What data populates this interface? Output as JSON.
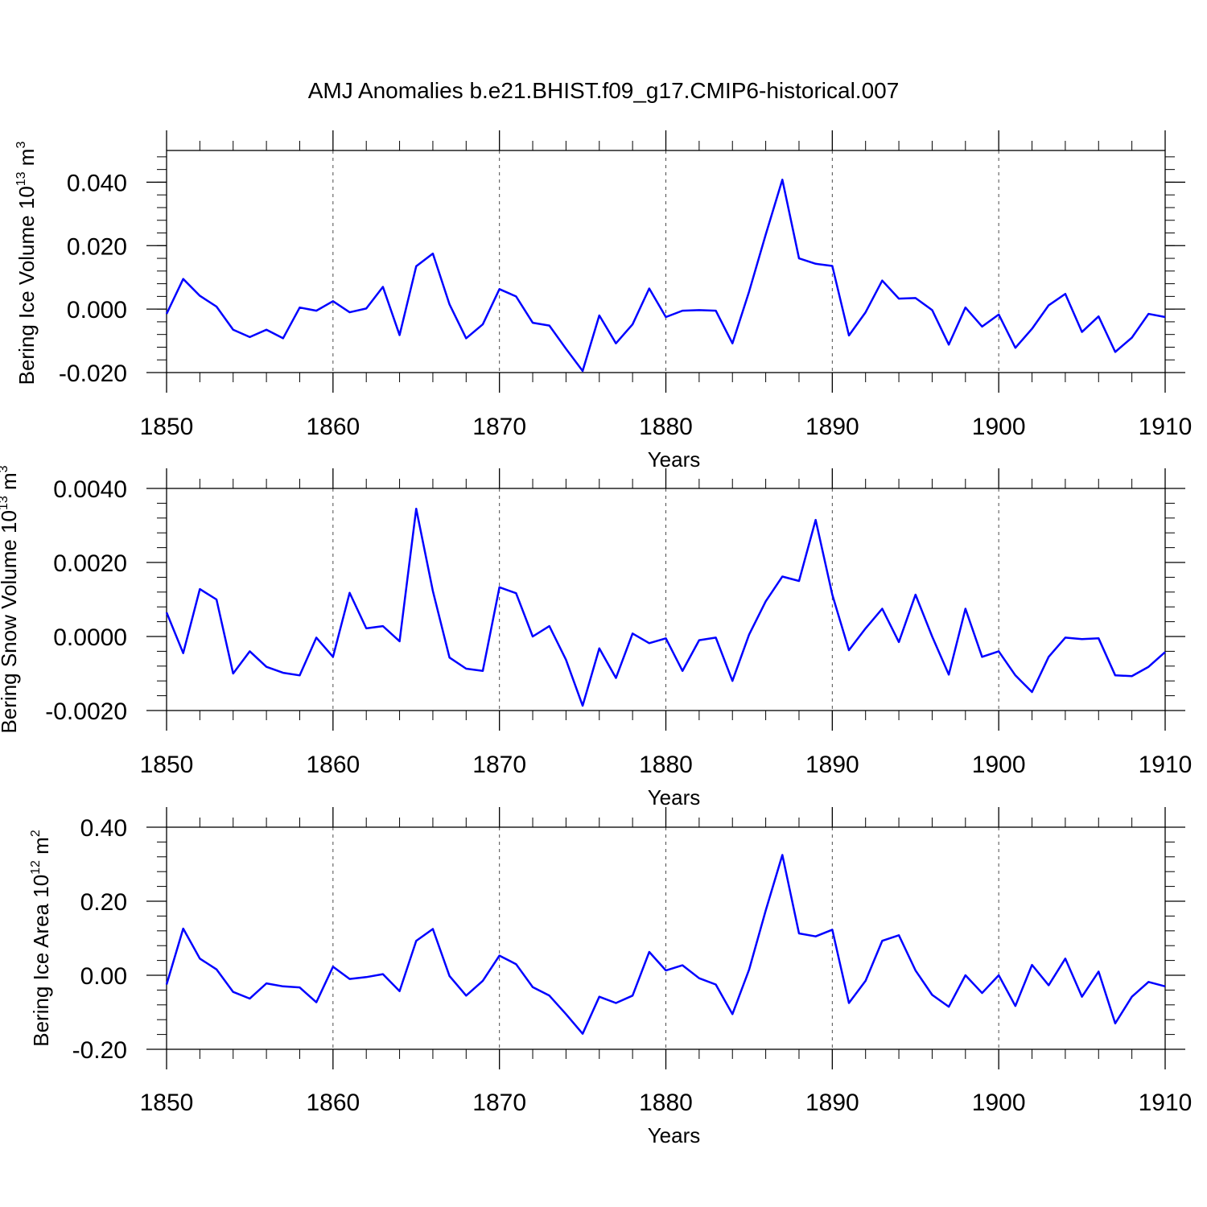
{
  "title": "AMJ Anomalies b.e21.BHIST.f09_g17.CMIP6-historical.007",
  "colors": {
    "line": "#0000ff",
    "axes": "#000000"
  },
  "chart_data": [
    {
      "type": "line",
      "ylabel": {
        "text": "Bering Ice Volume 10",
        "sup": "13",
        "unit": " m",
        "unit_sup": "3"
      },
      "xlabel": "Years",
      "xlim": [
        1850,
        1910
      ],
      "ylim": [
        -0.02,
        0.05
      ],
      "yticks": [
        -0.02,
        0.0,
        0.02,
        0.04
      ],
      "ytick_labels": [
        "-0.020",
        "0.000",
        "0.020",
        "0.040"
      ],
      "xticks": [
        1850,
        1860,
        1870,
        1880,
        1890,
        1900,
        1910
      ],
      "xtick_labels": [
        "1850",
        "1860",
        "1870",
        "1880",
        "1890",
        "1900",
        "1910"
      ],
      "grid": "vertical dashed at decades",
      "start_year": 1850,
      "values": [
        -0.0015,
        0.0095,
        0.0042,
        0.0008,
        -0.0065,
        -0.0088,
        -0.0065,
        -0.0092,
        0.0005,
        -0.0005,
        0.0025,
        -0.001,
        0.0002,
        0.007,
        -0.0082,
        0.0135,
        0.0175,
        0.0015,
        -0.0092,
        -0.0048,
        0.0063,
        0.004,
        -0.0043,
        -0.0052,
        -0.0125,
        -0.0195,
        -0.002,
        -0.0108,
        -0.0048,
        0.0065,
        -0.0025,
        -0.0005,
        -0.0003,
        -0.0005,
        -0.0108,
        0.0055,
        0.0235,
        0.0408,
        0.016,
        0.0143,
        0.0136,
        -0.0083,
        -0.001,
        0.009,
        0.0033,
        0.0035,
        -0.0003,
        -0.0112,
        0.0005,
        -0.0055,
        -0.0017,
        -0.0122,
        -0.0062,
        0.0012,
        0.0048,
        -0.0072,
        -0.0023,
        -0.0135,
        -0.009,
        -0.0015,
        -0.0025
      ]
    },
    {
      "type": "line",
      "ylabel": {
        "text": "Bering Snow Volume 10",
        "sup": "13",
        "unit": " m",
        "unit_sup": "3"
      },
      "xlabel": "Years",
      "xlim": [
        1850,
        1910
      ],
      "ylim": [
        -0.002,
        0.004
      ],
      "yticks": [
        -0.002,
        0.0,
        0.002,
        0.004
      ],
      "ytick_labels": [
        "-0.0020",
        "0.0000",
        "0.0020",
        "0.0040"
      ],
      "xticks": [
        1850,
        1860,
        1870,
        1880,
        1890,
        1900,
        1910
      ],
      "xtick_labels": [
        "1850",
        "1860",
        "1870",
        "1880",
        "1890",
        "1900",
        "1910"
      ],
      "grid": "vertical dashed at decades",
      "start_year": 1850,
      "values": [
        0.00065,
        -0.00045,
        0.00128,
        0.001,
        -0.001,
        -0.0004,
        -0.00082,
        -0.00098,
        -0.00105,
        -3e-05,
        -0.00055,
        0.00118,
        0.00022,
        0.00028,
        -0.00013,
        0.00345,
        0.00123,
        -0.00057,
        -0.00087,
        -0.00093,
        0.00133,
        0.00117,
        0.0,
        0.00028,
        -0.00063,
        -0.00187,
        -0.00032,
        -0.00112,
        8e-05,
        -0.00018,
        -5e-05,
        -0.00093,
        -0.0001,
        -3e-05,
        -0.0012,
        5e-05,
        0.00095,
        0.00162,
        0.0015,
        0.00315,
        0.00113,
        -0.00037,
        0.00022,
        0.00075,
        -0.00015,
        0.00113,
        0.0,
        -0.00103,
        0.00075,
        -0.00055,
        -0.0004,
        -0.00105,
        -0.0015,
        -0.00055,
        -3e-05,
        -7e-05,
        -5e-05,
        -0.00105,
        -0.00107,
        -0.00082,
        -0.00042
      ]
    },
    {
      "type": "line",
      "ylabel": {
        "text": "Bering Ice Area 10",
        "sup": "12",
        "unit": " m",
        "unit_sup": "2"
      },
      "xlabel": "Years",
      "xlim": [
        1850,
        1910
      ],
      "ylim": [
        -0.2,
        0.4
      ],
      "yticks": [
        -0.2,
        0.0,
        0.2,
        0.4
      ],
      "ytick_labels": [
        "-0.20",
        "0.00",
        "0.20",
        "0.40"
      ],
      "xticks": [
        1850,
        1860,
        1870,
        1880,
        1890,
        1900,
        1910
      ],
      "xtick_labels": [
        "1850",
        "1860",
        "1870",
        "1880",
        "1890",
        "1900",
        "1910"
      ],
      "grid": "vertical dashed at decades",
      "start_year": 1850,
      "values": [
        -0.025,
        0.126,
        0.045,
        0.016,
        -0.045,
        -0.063,
        -0.022,
        -0.03,
        -0.033,
        -0.073,
        0.023,
        -0.01,
        -0.005,
        0.003,
        -0.043,
        0.093,
        0.125,
        -0.002,
        -0.055,
        -0.015,
        0.053,
        0.03,
        -0.032,
        -0.055,
        -0.105,
        -0.158,
        -0.058,
        -0.075,
        -0.055,
        0.063,
        0.013,
        0.027,
        -0.008,
        -0.025,
        -0.105,
        0.015,
        0.175,
        0.325,
        0.113,
        0.105,
        0.123,
        -0.075,
        -0.015,
        0.093,
        0.108,
        0.013,
        -0.053,
        -0.085,
        0.0,
        -0.048,
        0.0,
        -0.083,
        0.028,
        -0.027,
        0.045,
        -0.058,
        0.01,
        -0.13,
        -0.058,
        -0.018,
        -0.03
      ]
    }
  ]
}
